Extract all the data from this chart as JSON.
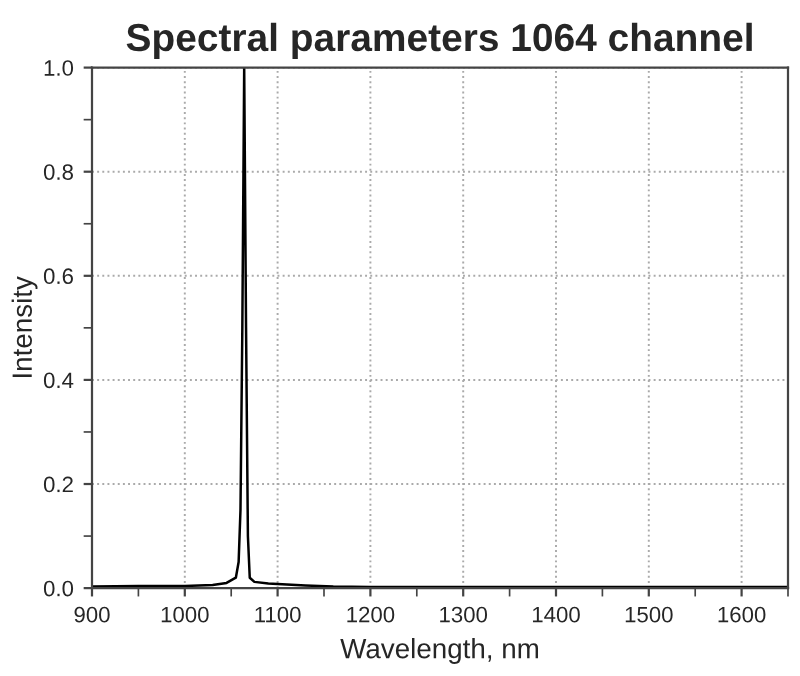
{
  "chart_data": {
    "type": "line",
    "title": "Spectral parameters 1064 channel",
    "xlabel": "Wavelength, nm",
    "ylabel": "Intensity",
    "x": [
      900,
      950,
      1000,
      1030,
      1045,
      1055,
      1058,
      1060,
      1062,
      1064,
      1066,
      1068,
      1070,
      1075,
      1090,
      1100,
      1130,
      1160,
      1200,
      1300,
      1400,
      1500,
      1600,
      1650
    ],
    "series": [
      {
        "color": "#000000",
        "values": [
          0.003,
          0.004,
          0.004,
          0.006,
          0.01,
          0.02,
          0.05,
          0.15,
          0.5,
          1.0,
          0.5,
          0.1,
          0.02,
          0.012,
          0.009,
          0.008,
          0.005,
          0.003,
          0.002,
          0.002,
          0.002,
          0.002,
          0.002,
          0.002
        ]
      }
    ],
    "xlim": [
      900,
      1650
    ],
    "ylim": [
      0,
      1.0
    ],
    "xticks": [
      900,
      1000,
      1100,
      1200,
      1300,
      1400,
      1500,
      1600
    ],
    "yticks": [
      {
        "value": 0,
        "label": "0.0"
      },
      0.2,
      0.4,
      0.6,
      0.8,
      {
        "value": 1,
        "label": "1.0"
      }
    ],
    "grid": true,
    "legend": false,
    "marker": "none",
    "line_style": "solid"
  }
}
